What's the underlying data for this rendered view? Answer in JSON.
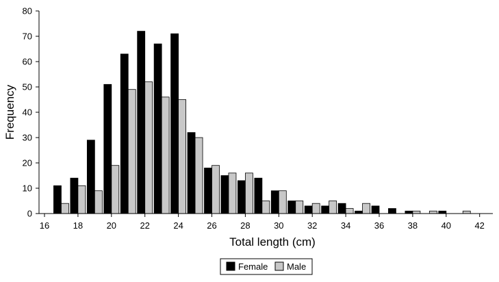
{
  "chart_data": {
    "type": "bar",
    "xlabel": "Total length (cm)",
    "ylabel": "Frequency",
    "xlim": [
      16,
      43
    ],
    "ylim": [
      0,
      80
    ],
    "x_ticks": [
      16,
      18,
      20,
      22,
      24,
      26,
      28,
      30,
      32,
      34,
      36,
      38,
      40,
      42
    ],
    "y_ticks": [
      0,
      10,
      20,
      30,
      40,
      50,
      60,
      70,
      80
    ],
    "x": [
      17,
      18,
      19,
      20,
      21,
      22,
      23,
      24,
      25,
      26,
      27,
      28,
      29,
      30,
      31,
      32,
      33,
      34,
      35,
      36,
      37,
      38,
      39,
      40,
      41
    ],
    "series": [
      {
        "name": "Female",
        "color": "#000000",
        "values": [
          11,
          14,
          29,
          51,
          63,
          72,
          67,
          71,
          32,
          18,
          15,
          13,
          14,
          9,
          5,
          3,
          3,
          4,
          1,
          3,
          2,
          1,
          0,
          1,
          0
        ]
      },
      {
        "name": "Male",
        "color": "#c8c8c8",
        "values": [
          4,
          11,
          9,
          19,
          49,
          52,
          46,
          45,
          30,
          19,
          16,
          16,
          5,
          9,
          5,
          4,
          5,
          2,
          4,
          0,
          0,
          1,
          1,
          0,
          1
        ]
      }
    ],
    "grid": false,
    "legend_position": "bottom-center"
  }
}
